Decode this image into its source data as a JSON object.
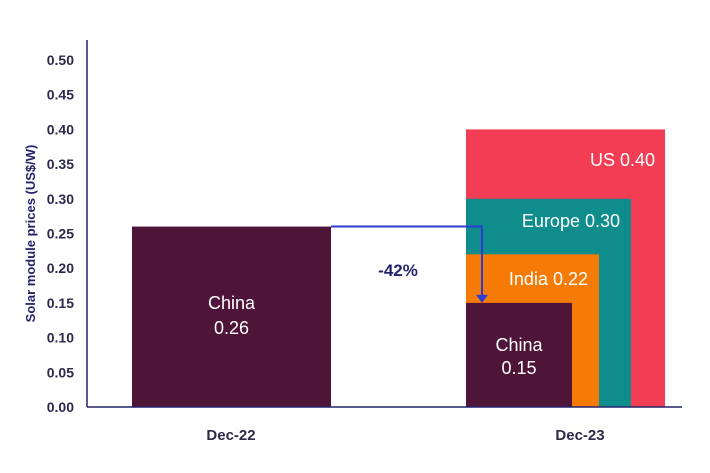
{
  "chart_data": {
    "type": "bar",
    "ylabel": "Solar module prices  (US$/W)",
    "ylim": [
      0,
      0.5
    ],
    "yticks": [
      "0.00",
      "0.05",
      "0.10",
      "0.15",
      "0.20",
      "0.25",
      "0.30",
      "0.35",
      "0.40",
      "0.45",
      "0.50"
    ],
    "categories": [
      "Dec-22",
      "Dec-23"
    ],
    "groups": [
      {
        "category": "Dec-22",
        "bars": [
          {
            "name": "China",
            "value": 0.26,
            "label_line1": "China",
            "label_line2": "0.26",
            "color": "#4e1539"
          }
        ]
      },
      {
        "category": "Dec-23",
        "bars": [
          {
            "name": "US",
            "value": 0.4,
            "label": "US 0.40",
            "color": "#f23d55"
          },
          {
            "name": "Europe",
            "value": 0.3,
            "label": "Europe 0.30",
            "color": "#0f8d8c"
          },
          {
            "name": "India",
            "value": 0.22,
            "label": "India 0.22",
            "color": "#f57a06"
          },
          {
            "name": "China",
            "value": 0.15,
            "label_line1": "China",
            "label_line2": "0.15",
            "color": "#4e1539"
          }
        ]
      }
    ],
    "annotation": {
      "text": "-42%",
      "from": 0.26,
      "to": 0.15,
      "color": "#2b3bd6"
    },
    "axis_color": "#23236b"
  }
}
